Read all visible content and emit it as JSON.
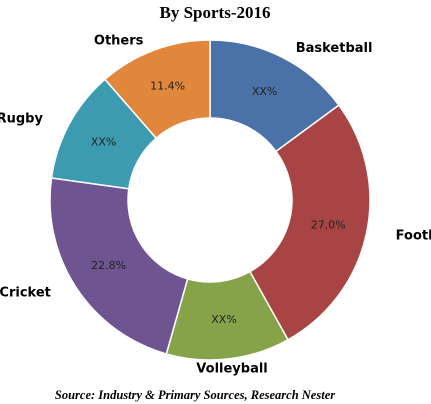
{
  "chart_data": {
    "type": "donut",
    "title": "By Sports-2016",
    "categories": [
      "Basketball",
      "Football",
      "Volleyball",
      "Cricket",
      "Rugby",
      "Others"
    ],
    "values": [
      14.9,
      27.0,
      12.5,
      22.8,
      11.4,
      11.4
    ],
    "value_labels": [
      "XX%",
      "27.0%",
      "XX%",
      "22.8%",
      "XX%",
      "11.4%"
    ],
    "colors": [
      "#4a72a8",
      "#a84443",
      "#86a34a",
      "#6e5491",
      "#3c9bb0",
      "#e0873c"
    ],
    "source": "Source: Industry & Primary Sources, Research Nester"
  }
}
